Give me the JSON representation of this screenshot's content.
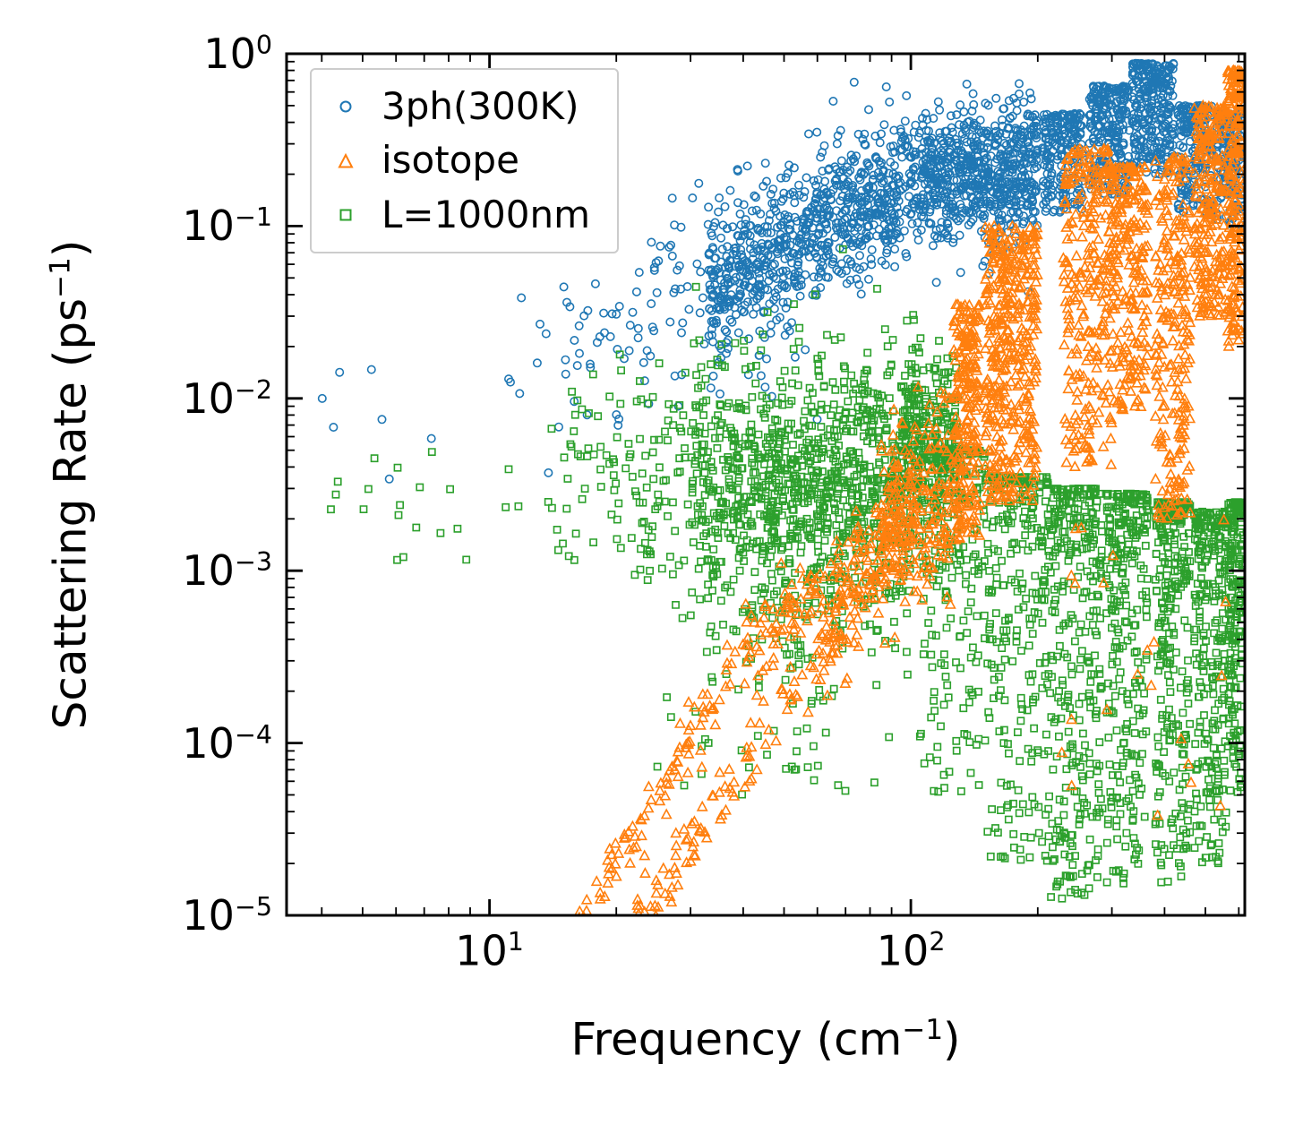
{
  "figure": {
    "background": "#ffffff"
  },
  "chart_data": {
    "type": "scatter",
    "title": "",
    "xlabel": "Frequency (cm⁻¹)",
    "ylabel": "Scattering Rate (ps⁻¹)",
    "xlabel_parts": {
      "text": "Frequency (cm",
      "sup": "−1",
      "end": ")"
    },
    "ylabel_parts": {
      "text": "Scattering Rate (ps",
      "sup": "−1",
      "end": ")"
    },
    "xscale": "log",
    "yscale": "log",
    "xlim": [
      3.3,
      620
    ],
    "ylim": [
      1e-05,
      1
    ],
    "grid": false,
    "tick_direction": "in",
    "x_major_ticks": [
      {
        "value": 10,
        "base": "10",
        "exp": "1"
      },
      {
        "value": 100,
        "base": "10",
        "exp": "2"
      }
    ],
    "y_major_ticks": [
      {
        "value": 1,
        "base": "10",
        "exp": "0"
      },
      {
        "value": 0.1,
        "base": "10",
        "exp": "−1"
      },
      {
        "value": 0.01,
        "base": "10",
        "exp": "−2"
      },
      {
        "value": 0.001,
        "base": "10",
        "exp": "−3"
      },
      {
        "value": 0.0001,
        "base": "10",
        "exp": "−4"
      },
      {
        "value": 1e-05,
        "base": "10",
        "exp": "−5"
      }
    ],
    "legend": {
      "position": "upper left",
      "edge_color": "#cccccc",
      "face_color": "#ffffff"
    },
    "seed": 12345,
    "draw_order": [
      0,
      2,
      1
    ],
    "points_representation": "dense scatter clouds approximated by density components (x/y in axis units)",
    "series": [
      {
        "name": "3ph(300K)",
        "marker": "circle",
        "color": "#1f77b4",
        "components": [
          {
            "mode": "trend",
            "x": [
              4,
              15
            ],
            "yc": [
              0.008,
              0.02
            ],
            "spread": 0.3,
            "n": 16
          },
          {
            "mode": "trend",
            "x": [
              15,
              33
            ],
            "yc": [
              0.02,
              0.045
            ],
            "spread": 0.28,
            "n": 70
          },
          {
            "mode": "trend",
            "x": [
              20,
              60
            ],
            "yc": [
              0.012,
              0.02
            ],
            "spread": 0.3,
            "n": 30
          },
          {
            "mode": "trend",
            "x": [
              33,
              100
            ],
            "yc": [
              0.045,
              0.18
            ],
            "spread": 0.22,
            "n": 800
          },
          {
            "mode": "trend",
            "x": [
              100,
              200
            ],
            "yc": [
              0.18,
              0.22
            ],
            "spread": 0.2,
            "n": 700
          },
          {
            "mode": "column",
            "x": [
              205,
              255
            ],
            "ytop": 0.45,
            "ybot": 0.12,
            "bias": 1.6,
            "n": 200
          },
          {
            "mode": "column",
            "x": [
              265,
              330
            ],
            "ytop": 0.65,
            "ybot": 0.15,
            "bias": 1.6,
            "n": 240
          },
          {
            "mode": "column",
            "x": [
              335,
              420
            ],
            "ytop": 0.88,
            "ybot": 0.2,
            "bias": 1.6,
            "n": 280
          },
          {
            "mode": "column",
            "x": [
              430,
              520
            ],
            "ytop": 0.5,
            "ybot": 0.12,
            "bias": 1.6,
            "n": 190
          },
          {
            "mode": "column",
            "x": [
              530,
              615
            ],
            "ytop": 0.45,
            "ybot": 0.1,
            "bias": 1.6,
            "n": 170
          }
        ]
      },
      {
        "name": "isotope",
        "marker": "triangle",
        "color": "#ff7f0e",
        "components": [
          {
            "mode": "line",
            "x": [
              16,
              40
            ],
            "y": [
              9e-06,
              0.00032
            ],
            "jitter": 0.1,
            "n": 90
          },
          {
            "mode": "line",
            "x": [
              40,
              95
            ],
            "y": [
              0.00032,
              0.0022
            ],
            "jitter": 0.12,
            "n": 150
          },
          {
            "mode": "line",
            "x": [
              22,
              60
            ],
            "y": [
              9e-06,
              0.0003
            ],
            "jitter": 0.1,
            "n": 90
          },
          {
            "mode": "line",
            "x": [
              60,
              100
            ],
            "y": [
              0.0003,
              0.0016
            ],
            "jitter": 0.12,
            "n": 110
          },
          {
            "mode": "trend",
            "x": [
              85,
              125
            ],
            "yc": [
              0.0018,
              0.003
            ],
            "spread": 0.3,
            "n": 200
          },
          {
            "mode": "column",
            "x": [
              126,
              146
            ],
            "ytop": 0.035,
            "ybot": 0.0015,
            "bias": 1.3,
            "n": 240
          },
          {
            "mode": "column",
            "x": [
              150,
              200
            ],
            "ytop": 0.1,
            "ybot": 0.0025,
            "bias": 1.2,
            "n": 420
          },
          {
            "mode": "column",
            "x": [
              230,
              300
            ],
            "ytop": 0.28,
            "ybot": 0.004,
            "bias": 1.4,
            "n": 280
          },
          {
            "mode": "column",
            "x": [
              300,
              365
            ],
            "ytop": 0.22,
            "ybot": 0.008,
            "bias": 1.4,
            "n": 220
          },
          {
            "mode": "column",
            "x": [
              380,
              460
            ],
            "ytop": 0.25,
            "ybot": 0.002,
            "bias": 1.2,
            "n": 240
          },
          {
            "mode": "column",
            "x": [
              470,
              560
            ],
            "ytop": 0.5,
            "ybot": 0.03,
            "bias": 1.3,
            "n": 240
          },
          {
            "mode": "column",
            "x": [
              565,
              615
            ],
            "ytop": 0.8,
            "ybot": 0.02,
            "bias": 1.5,
            "n": 220
          },
          {
            "mode": "band",
            "x": [
              200,
              600
            ],
            "y": [
              2e-05,
              0.002
            ],
            "n": 22
          }
        ]
      },
      {
        "name": "L=1000nm",
        "marker": "square",
        "color": "#2ca02c",
        "components": [
          {
            "mode": "trend",
            "x": [
              4,
              14
            ],
            "yc": [
              0.002,
              0.003
            ],
            "spread": 0.18,
            "n": 22
          },
          {
            "mode": "trend",
            "x": [
              14,
              30
            ],
            "yc": [
              0.0035,
              0.005
            ],
            "spread": 0.28,
            "n": 100
          },
          {
            "mode": "line",
            "x": [
              22,
              60
            ],
            "y": [
              0.002,
              0.00012
            ],
            "jitter": 0.25,
            "n": 55
          },
          {
            "mode": "band",
            "x": [
              25,
              90
            ],
            "y": [
              5e-05,
              0.0004
            ],
            "n": 35
          },
          {
            "mode": "trend",
            "x": [
              30,
              105
            ],
            "yc": [
              0.0035,
              0.0045
            ],
            "spread": 0.35,
            "n": 800
          },
          {
            "mode": "trend",
            "x": [
              40,
              100
            ],
            "yc": [
              0.0012,
              0.0015
            ],
            "spread": 0.4,
            "n": 280
          },
          {
            "mode": "trend",
            "x": [
              95,
              130
            ],
            "yc": [
              0.006,
              0.006
            ],
            "spread": 0.25,
            "n": 240
          },
          {
            "mode": "column",
            "x": [
              105,
              150
            ],
            "ytop": 0.005,
            "ybot": 5e-05,
            "bias": 2.2,
            "n": 240
          },
          {
            "mode": "column",
            "x": [
              150,
              215
            ],
            "ytop": 0.0035,
            "ybot": 2e-05,
            "bias": 2.2,
            "n": 280
          },
          {
            "mode": "column",
            "x": [
              215,
              285
            ],
            "ytop": 0.003,
            "ybot": 1.2e-05,
            "bias": 2.0,
            "n": 320
          },
          {
            "mode": "column",
            "x": [
              290,
              365
            ],
            "ytop": 0.0028,
            "ybot": 1.5e-05,
            "bias": 2.0,
            "n": 280
          },
          {
            "mode": "column",
            "x": [
              380,
              460
            ],
            "ytop": 0.0025,
            "ybot": 1.5e-05,
            "bias": 2.0,
            "n": 280
          },
          {
            "mode": "column",
            "x": [
              470,
              560
            ],
            "ytop": 0.0022,
            "ybot": 2e-05,
            "bias": 2.0,
            "n": 260
          },
          {
            "mode": "column",
            "x": [
              565,
              615
            ],
            "ytop": 0.0025,
            "ybot": 5e-05,
            "bias": 1.8,
            "n": 200
          }
        ]
      }
    ]
  }
}
